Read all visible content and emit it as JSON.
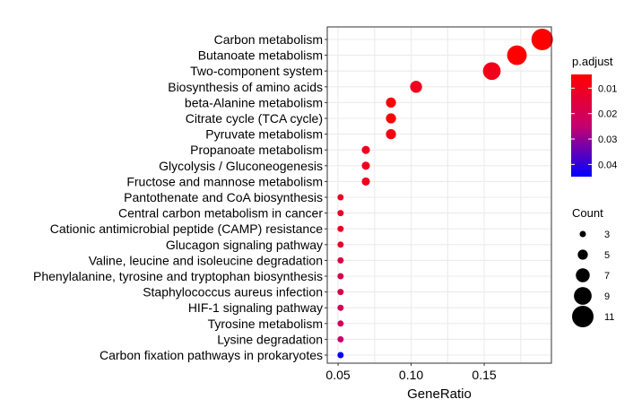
{
  "chart_data": {
    "type": "scatter",
    "title": "",
    "xlabel": "GeneRatio",
    "ylabel": "",
    "xlim": [
      0.0426,
      0.196
    ],
    "xticks": [
      0.05,
      0.1,
      0.15
    ],
    "xtick_labels": [
      "0.05",
      "0.10",
      "0.15"
    ],
    "grid": true,
    "categories": [
      "Carbon metabolism",
      "Butanoate metabolism",
      "Two-component system",
      "Biosynthesis of amino acids",
      "beta-Alanine metabolism",
      "Citrate cycle (TCA cycle)",
      "Pyruvate metabolism",
      "Propanoate metabolism",
      "Glycolysis / Gluconeogenesis",
      "Fructose and mannose metabolism",
      "Pantothenate and CoA biosynthesis",
      "Central carbon metabolism in cancer",
      "Cationic antimicrobial peptide (CAMP) resistance",
      "Glucagon signaling pathway",
      "Valine, leucine and isoleucine degradation",
      "Phenylalanine, tyrosine and tryptophan biosynthesis",
      "Staphylococcus aureus infection",
      "HIF-1 signaling pathway",
      "Tyrosine metabolism",
      "Lysine degradation",
      "Carbon fixation pathways in prokaryotes"
    ],
    "gene_ratio": [
      0.1897,
      0.1724,
      0.1552,
      0.1034,
      0.0862,
      0.0862,
      0.0862,
      0.069,
      0.069,
      0.069,
      0.0517,
      0.0517,
      0.0517,
      0.0517,
      0.0517,
      0.0517,
      0.0517,
      0.0517,
      0.0517,
      0.0517,
      0.0517
    ],
    "count": [
      11,
      10,
      9,
      6,
      5,
      5,
      5,
      4,
      4,
      4,
      3,
      3,
      3,
      3,
      3,
      3,
      3,
      3,
      3,
      3,
      3
    ],
    "p_adjust": [
      0.005,
      0.005,
      0.009,
      0.01,
      0.005,
      0.005,
      0.008,
      0.01,
      0.01,
      0.01,
      0.011,
      0.011,
      0.011,
      0.012,
      0.017,
      0.018,
      0.019,
      0.02,
      0.021,
      0.024,
      0.045
    ],
    "color_legend": {
      "title": "p.adjust",
      "ticks": [
        0.01,
        0.02,
        0.03,
        0.04
      ],
      "tick_labels": [
        "0.01",
        "0.02",
        "0.03",
        "0.04"
      ],
      "range": [
        0.0046,
        0.0448
      ],
      "low_color": "#FF0000",
      "high_color": "#0000FF"
    },
    "size_legend": {
      "title": "Count",
      "values": [
        3,
        5,
        7,
        9,
        11
      ],
      "labels": [
        "3",
        "5",
        "7",
        "9",
        "11"
      ]
    },
    "legend_position": "right"
  }
}
